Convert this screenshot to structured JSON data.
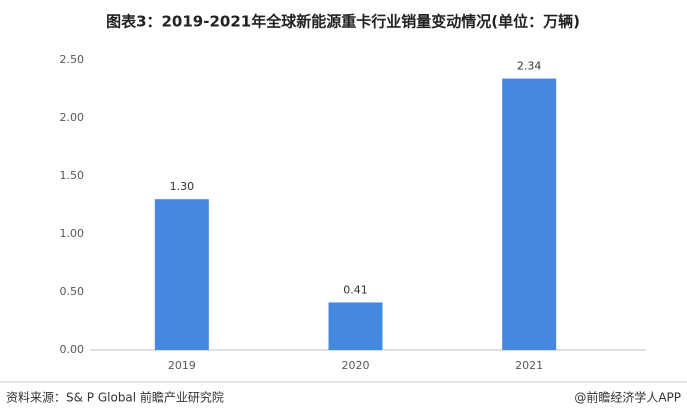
{
  "chart_data": {
    "type": "bar",
    "title": "图表3：2019-2021年全球新能源重卡行业销量变动情况(单位：万辆)",
    "categories": [
      "2019",
      "2020",
      "2021"
    ],
    "values": [
      1.3,
      0.41,
      2.34
    ],
    "value_labels": [
      "1.30",
      "0.41",
      "2.34"
    ],
    "color": "#4488e0",
    "ylim": [
      0,
      2.5
    ],
    "yticks": [
      {
        "value": 0,
        "label": "0.00"
      },
      {
        "value": 0.5,
        "label": "0.50"
      },
      {
        "value": 1,
        "label": "1.00"
      },
      {
        "value": 1.5,
        "label": "1.50"
      },
      {
        "value": 2,
        "label": "2.00"
      },
      {
        "value": 2.5,
        "label": "2.50"
      }
    ],
    "grid": false,
    "source": "资料来源：S& P Global 前瞻产业研究院",
    "credit": "@前瞻经济学人APP"
  }
}
